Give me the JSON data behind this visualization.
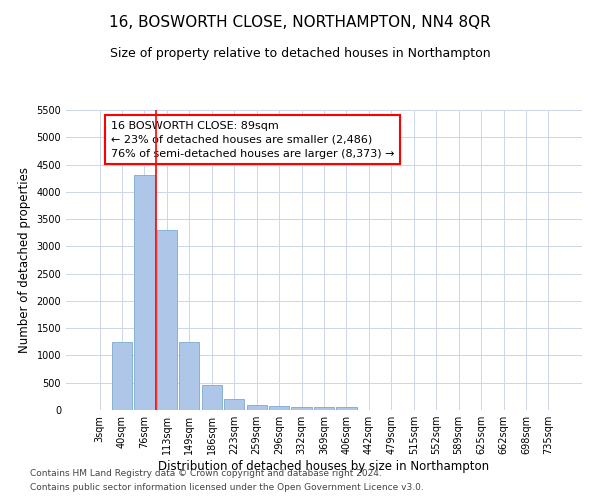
{
  "title": "16, BOSWORTH CLOSE, NORTHAMPTON, NN4 8QR",
  "subtitle": "Size of property relative to detached houses in Northampton",
  "xlabel": "Distribution of detached houses by size in Northampton",
  "ylabel": "Number of detached properties",
  "categories": [
    "3sqm",
    "40sqm",
    "76sqm",
    "113sqm",
    "149sqm",
    "186sqm",
    "223sqm",
    "259sqm",
    "296sqm",
    "332sqm",
    "369sqm",
    "406sqm",
    "442sqm",
    "479sqm",
    "515sqm",
    "552sqm",
    "589sqm",
    "625sqm",
    "662sqm",
    "698sqm",
    "735sqm"
  ],
  "values": [
    0,
    1250,
    4300,
    3300,
    1250,
    450,
    200,
    100,
    80,
    60,
    55,
    55,
    0,
    0,
    0,
    0,
    0,
    0,
    0,
    0,
    0
  ],
  "bar_color": "#aec6e8",
  "bar_edge_color": "#7aaad0",
  "red_line_x": 2.5,
  "annotation_box_text": "16 BOSWORTH CLOSE: 89sqm\n← 23% of detached houses are smaller (2,486)\n76% of semi-detached houses are larger (8,373) →",
  "ylim": [
    0,
    5500
  ],
  "yticks": [
    0,
    500,
    1000,
    1500,
    2000,
    2500,
    3000,
    3500,
    4000,
    4500,
    5000,
    5500
  ],
  "footer_line1": "Contains HM Land Registry data © Crown copyright and database right 2024.",
  "footer_line2": "Contains public sector information licensed under the Open Government Licence v3.0.",
  "bg_color": "#ffffff",
  "grid_color": "#ccd6e8",
  "title_fontsize": 11,
  "subtitle_fontsize": 9,
  "axis_label_fontsize": 8.5,
  "tick_fontsize": 7,
  "annotation_fontsize": 8,
  "footer_fontsize": 6.5
}
